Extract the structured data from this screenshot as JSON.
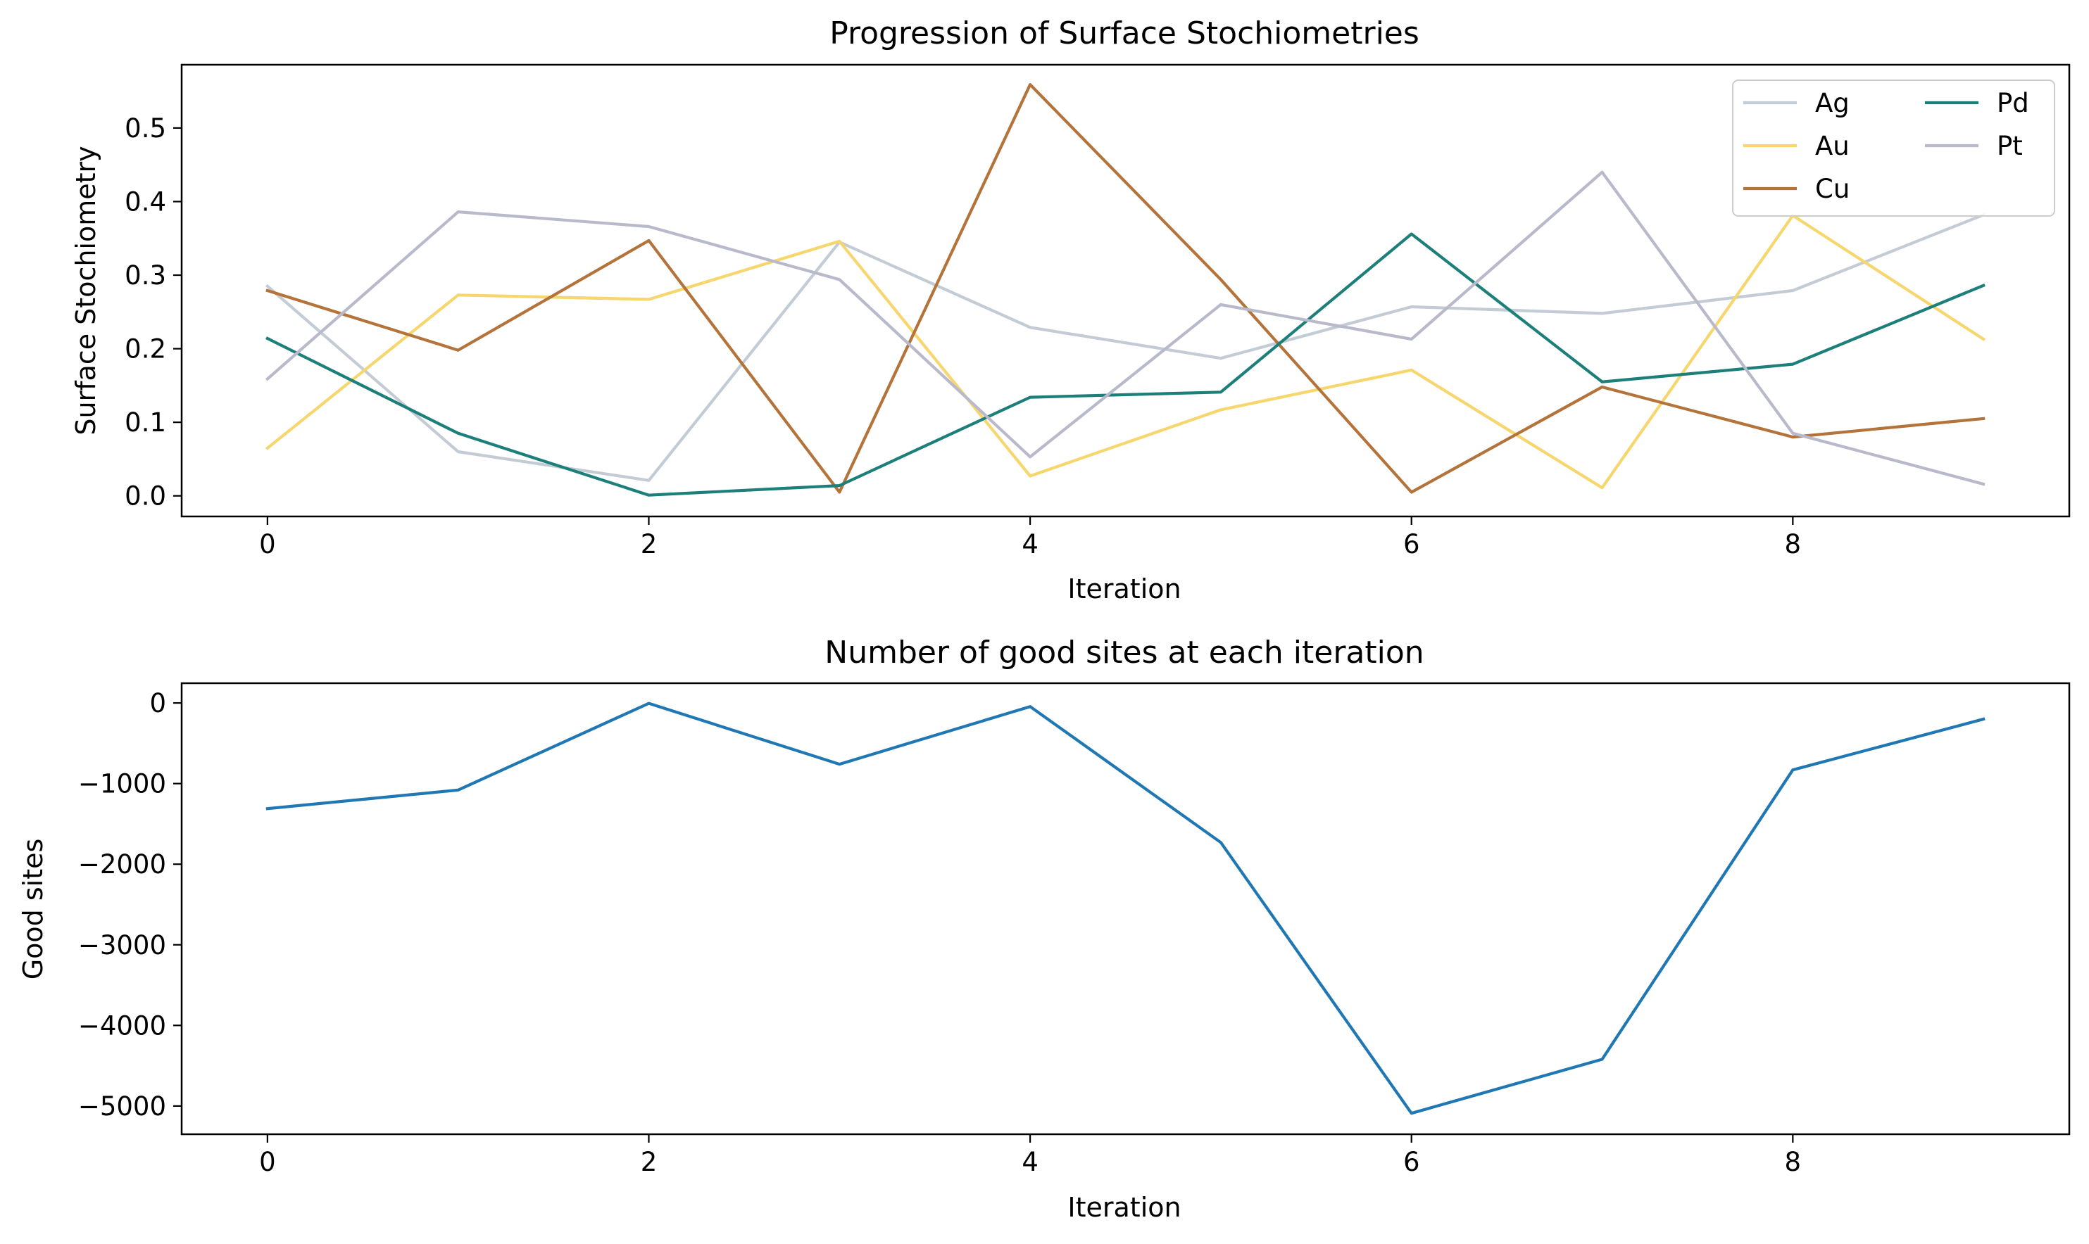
{
  "chart_data": [
    {
      "type": "line",
      "title": "Progression of Surface Stochiometries",
      "xlabel": "Iteration",
      "ylabel": "Surface Stochiometry",
      "xlim": [
        -0.45,
        9.45
      ],
      "ylim": [
        -0.028,
        0.586
      ],
      "xticks": [
        0,
        2,
        4,
        6,
        8
      ],
      "yticks": [
        0.0,
        0.1,
        0.2,
        0.3,
        0.4,
        0.5
      ],
      "xtick_labels": [
        "0",
        "2",
        "4",
        "6",
        "8"
      ],
      "ytick_labels": [
        "0.0",
        "0.1",
        "0.2",
        "0.3",
        "0.4",
        "0.5"
      ],
      "legend_placement": "top-right",
      "grid": false,
      "x": [
        0,
        1,
        2,
        3,
        4,
        5,
        6,
        7,
        8,
        9
      ],
      "series": [
        {
          "name": "Ag",
          "color": "#c3ccd5",
          "values": [
            0.285,
            0.06,
            0.021,
            0.345,
            0.229,
            0.187,
            0.257,
            0.248,
            0.279,
            0.382
          ]
        },
        {
          "name": "Au",
          "color": "#f6d66d",
          "values": [
            0.065,
            0.273,
            0.267,
            0.346,
            0.027,
            0.117,
            0.171,
            0.011,
            0.381,
            0.213
          ]
        },
        {
          "name": "Cu",
          "color": "#b4733a",
          "values": [
            0.279,
            0.198,
            0.347,
            0.005,
            0.559,
            0.294,
            0.005,
            0.148,
            0.08,
            0.105
          ]
        },
        {
          "name": "Pd",
          "color": "#1c7f7a",
          "values": [
            0.214,
            0.085,
            0.001,
            0.014,
            0.134,
            0.141,
            0.356,
            0.155,
            0.179,
            0.286
          ]
        },
        {
          "name": "Pt",
          "color": "#b9b9cc",
          "values": [
            0.159,
            0.386,
            0.366,
            0.294,
            0.053,
            0.26,
            0.213,
            0.44,
            0.085,
            0.016
          ]
        }
      ]
    },
    {
      "type": "line",
      "title": "Number of good sites at each iteration",
      "xlabel": "Iteration",
      "ylabel": "Good sites",
      "xlim": [
        -0.45,
        9.45
      ],
      "ylim": [
        -5350,
        245
      ],
      "xticks": [
        0,
        2,
        4,
        6,
        8
      ],
      "yticks": [
        0,
        -1000,
        -2000,
        -3000,
        -4000,
        -5000
      ],
      "xtick_labels": [
        "0",
        "2",
        "4",
        "6",
        "8"
      ],
      "ytick_labels": [
        "0",
        "−1000",
        "−2000",
        "−3000",
        "−4000",
        "−5000"
      ],
      "grid": false,
      "x": [
        0,
        1,
        2,
        3,
        4,
        5,
        6,
        7,
        8,
        9
      ],
      "series": [
        {
          "color": "#1f77b4",
          "values": [
            -1310,
            -1080,
            -5,
            -760,
            -45,
            -1730,
            -5090,
            -4420,
            -830,
            -200
          ]
        }
      ]
    }
  ]
}
